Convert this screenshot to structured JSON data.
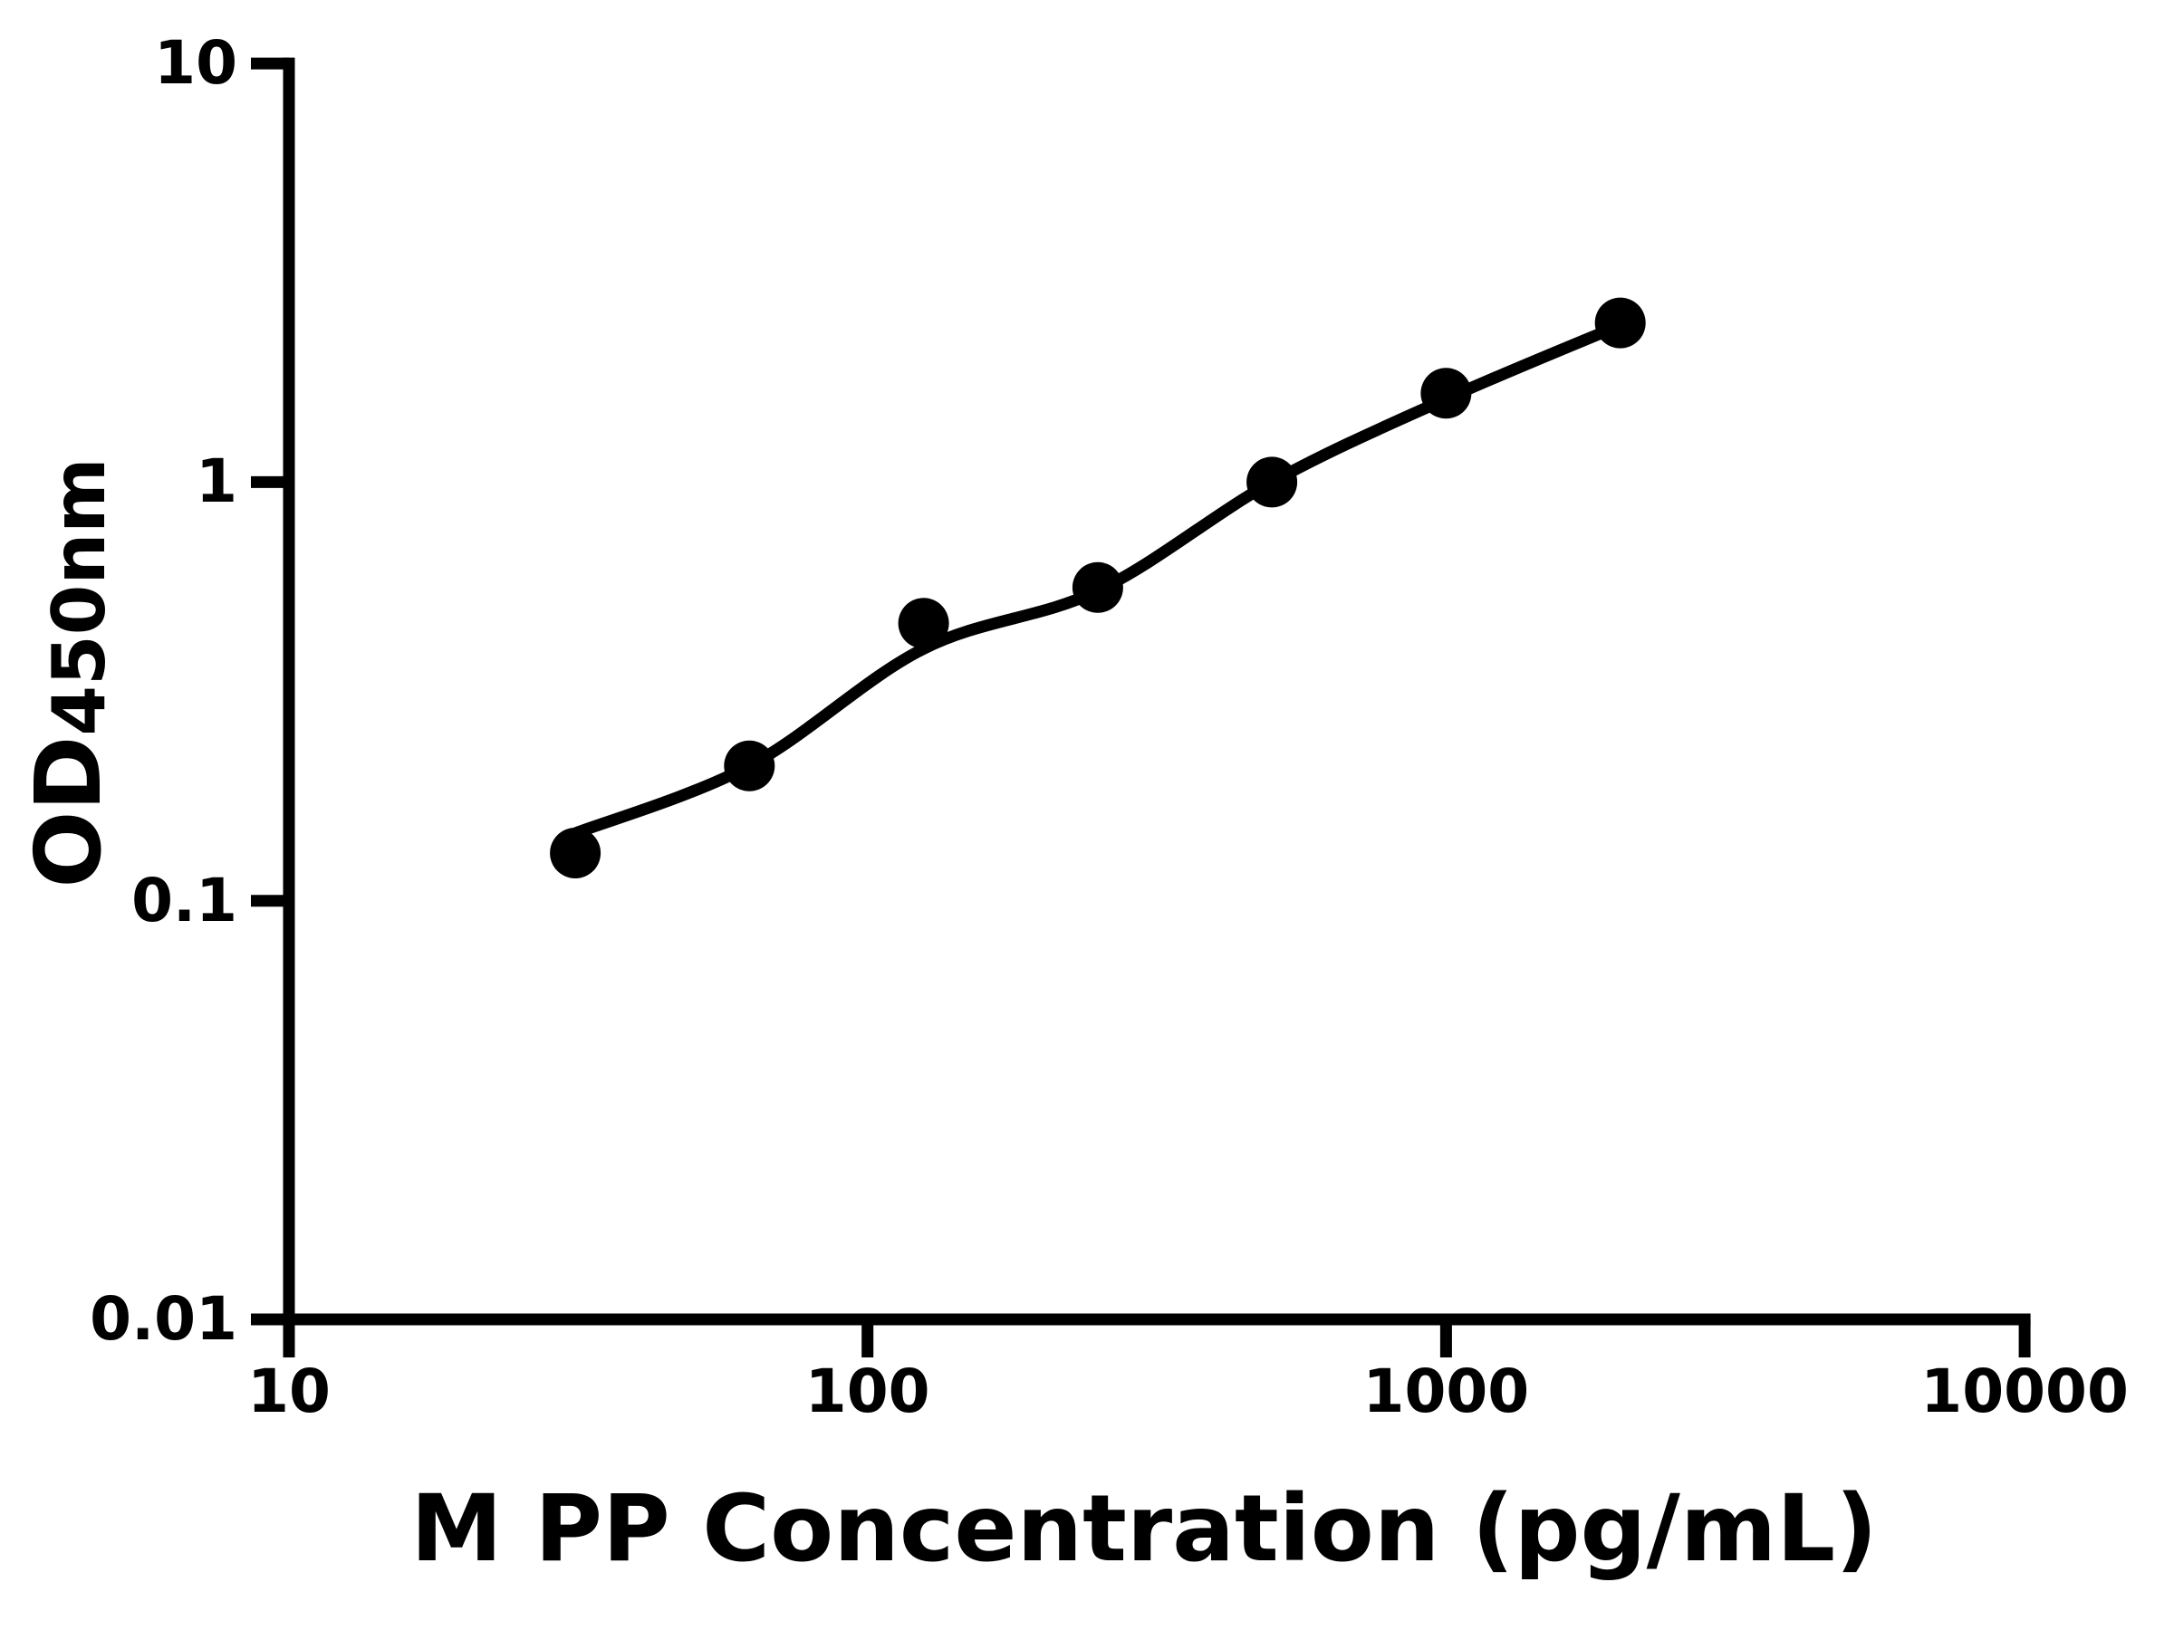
{
  "figure": {
    "background": "#ffffff",
    "ink_color": "#000000"
  },
  "chart_data": {
    "type": "scatter",
    "title": "",
    "xlabel": "M PP Concentration (pg/mL)",
    "ylabel": {
      "main": "OD",
      "subscript": "450nm"
    },
    "x_scale": "log",
    "y_scale": "log",
    "xlim": [
      10,
      10000
    ],
    "ylim": [
      0.01,
      10
    ],
    "grid": false,
    "legend": false,
    "x_ticks": {
      "values": [
        10,
        100,
        1000,
        10000
      ],
      "labels": [
        "10",
        "100",
        "1000",
        "10000"
      ]
    },
    "y_ticks": {
      "values": [
        10,
        1,
        0.1,
        0.01
      ],
      "labels": [
        "10",
        "1",
        "0.1",
        "0.01"
      ]
    },
    "series": [
      {
        "name": "standard data points",
        "type": "scatter",
        "marker": "filled-circle",
        "color": "#000000",
        "x": [
          31.25,
          62.5,
          125,
          250,
          500,
          1000,
          2000
        ],
        "y": [
          0.13,
          0.21,
          0.46,
          0.56,
          1.0,
          1.63,
          2.4
        ]
      },
      {
        "name": "fitted standard curve",
        "type": "line",
        "color": "#000000",
        "x": [
          31.25,
          62.5,
          125,
          250,
          500,
          1000,
          2000
        ],
        "y": [
          0.145,
          0.21,
          0.4,
          0.55,
          1.0,
          1.58,
          2.37
        ]
      }
    ]
  }
}
